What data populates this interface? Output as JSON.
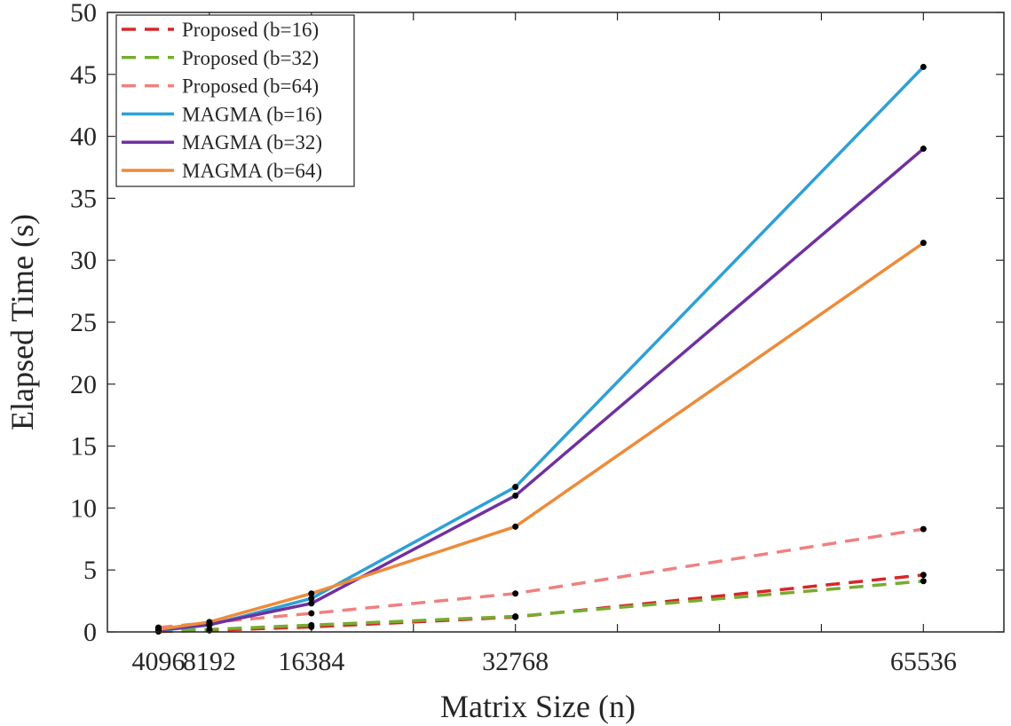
{
  "chart_data": {
    "type": "line",
    "title": "",
    "xlabel": "Matrix Size (n)",
    "ylabel": "Elapsed Time (s)",
    "x": [
      4096,
      8192,
      16384,
      32768,
      65536
    ],
    "xticks": [
      4096,
      8192,
      16384,
      32768,
      65536
    ],
    "ylim": [
      0,
      50
    ],
    "yticks": [
      0,
      5,
      10,
      15,
      20,
      25,
      30,
      35,
      40,
      45,
      50
    ],
    "grid": false,
    "legend_position": "top-left",
    "series": [
      {
        "name": "Proposed (b=16)",
        "style": "dashed",
        "color": "#d62728",
        "values": [
          0.03,
          0.12,
          0.4,
          1.2,
          4.6
        ]
      },
      {
        "name": "Proposed (b=32)",
        "style": "dashed",
        "color": "#77ac30",
        "values": [
          0.05,
          0.2,
          0.55,
          1.25,
          4.1
        ]
      },
      {
        "name": "Proposed (b=64)",
        "style": "dashed",
        "color": "#f08080",
        "values": [
          0.35,
          0.75,
          1.5,
          3.1,
          8.3
        ]
      },
      {
        "name": "MAGMA (b=16)",
        "style": "solid",
        "color": "#2ea0d6",
        "values": [
          0.1,
          0.55,
          2.7,
          11.7,
          45.6
        ]
      },
      {
        "name": "MAGMA (b=32)",
        "style": "solid",
        "color": "#7030a0",
        "values": [
          0.15,
          0.6,
          2.3,
          11.0,
          39.0
        ]
      },
      {
        "name": "MAGMA (b=64)",
        "style": "solid",
        "color": "#ed8b3a",
        "values": [
          0.2,
          0.8,
          3.1,
          8.5,
          31.4
        ]
      }
    ]
  }
}
